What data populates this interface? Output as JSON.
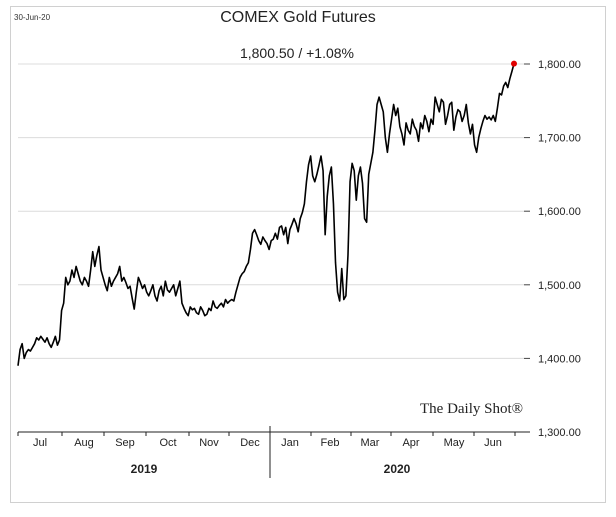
{
  "header": {
    "date_stamp": "30-Jun-20",
    "title": "COMEX Gold Futures",
    "subtitle": "1,800.50  /  +1.08%"
  },
  "watermark": {
    "brand": "The Daily Shot®"
  },
  "colors": {
    "line": "#000000",
    "endpoint": "#e00000",
    "grid": "#dcdcdc"
  },
  "chart_data": {
    "type": "line",
    "title": "COMEX Gold Futures",
    "xlabel": "",
    "ylabel": "",
    "ylim": [
      1300,
      1820
    ],
    "yticks": [
      1300,
      1400,
      1500,
      1600,
      1700,
      1800
    ],
    "ytick_labels": [
      "1,300.00",
      "1,400.00",
      "1,500.00",
      "1,600.00",
      "1,700.00",
      "1,800.00"
    ],
    "grid": true,
    "y_axis_side": "right",
    "month_labels": [
      "Jul",
      "Aug",
      "Sep",
      "Oct",
      "Nov",
      "Dec",
      "Jan",
      "Feb",
      "Mar",
      "Apr",
      "May",
      "Jun"
    ],
    "years": [
      "2019",
      "2020"
    ],
    "series": [
      {
        "values": [
          1390,
          1412,
          1420,
          1400,
          1408,
          1412,
          1410,
          1415,
          1420,
          1428,
          1425,
          1430,
          1426,
          1422,
          1428,
          1420,
          1415,
          1422,
          1430,
          1418,
          1425,
          1465,
          1475,
          1510,
          1500,
          1505,
          1520,
          1510,
          1525,
          1515,
          1505,
          1500,
          1510,
          1505,
          1498,
          1520,
          1545,
          1525,
          1540,
          1552,
          1520,
          1510,
          1500,
          1492,
          1510,
          1498,
          1505,
          1510,
          1515,
          1525,
          1505,
          1510,
          1503,
          1495,
          1498,
          1482,
          1467,
          1490,
          1510,
          1503,
          1495,
          1500,
          1490,
          1485,
          1492,
          1500,
          1485,
          1478,
          1492,
          1498,
          1485,
          1505,
          1493,
          1490,
          1495,
          1500,
          1485,
          1495,
          1505,
          1475,
          1468,
          1462,
          1458,
          1470,
          1466,
          1468,
          1462,
          1460,
          1470,
          1465,
          1458,
          1460,
          1468,
          1465,
          1478,
          1470,
          1468,
          1472,
          1475,
          1470,
          1480,
          1475,
          1478,
          1480,
          1478,
          1490,
          1500,
          1510,
          1515,
          1518,
          1525,
          1530,
          1548,
          1570,
          1575,
          1568,
          1560,
          1555,
          1565,
          1560,
          1556,
          1548,
          1560,
          1562,
          1570,
          1562,
          1578,
          1580,
          1568,
          1578,
          1556,
          1575,
          1582,
          1590,
          1583,
          1572,
          1590,
          1598,
          1610,
          1640,
          1663,
          1675,
          1648,
          1640,
          1650,
          1662,
          1675,
          1655,
          1568,
          1620,
          1648,
          1660,
          1610,
          1530,
          1490,
          1478,
          1522,
          1480,
          1485,
          1540,
          1640,
          1665,
          1655,
          1615,
          1648,
          1660,
          1638,
          1590,
          1585,
          1650,
          1665,
          1680,
          1710,
          1745,
          1755,
          1745,
          1735,
          1700,
          1680,
          1705,
          1725,
          1745,
          1730,
          1740,
          1715,
          1705,
          1690,
          1720,
          1710,
          1705,
          1725,
          1715,
          1710,
          1695,
          1720,
          1712,
          1730,
          1722,
          1708,
          1725,
          1718,
          1755,
          1745,
          1735,
          1752,
          1748,
          1718,
          1730,
          1745,
          1748,
          1710,
          1728,
          1738,
          1735,
          1722,
          1730,
          1745,
          1720,
          1705,
          1718,
          1690,
          1680,
          1700,
          1712,
          1722,
          1730,
          1725,
          1728,
          1724,
          1730,
          1722,
          1740,
          1760,
          1758,
          1770,
          1775,
          1768,
          1780,
          1790,
          1800.5
        ]
      }
    ],
    "last_value": 1800.5
  }
}
